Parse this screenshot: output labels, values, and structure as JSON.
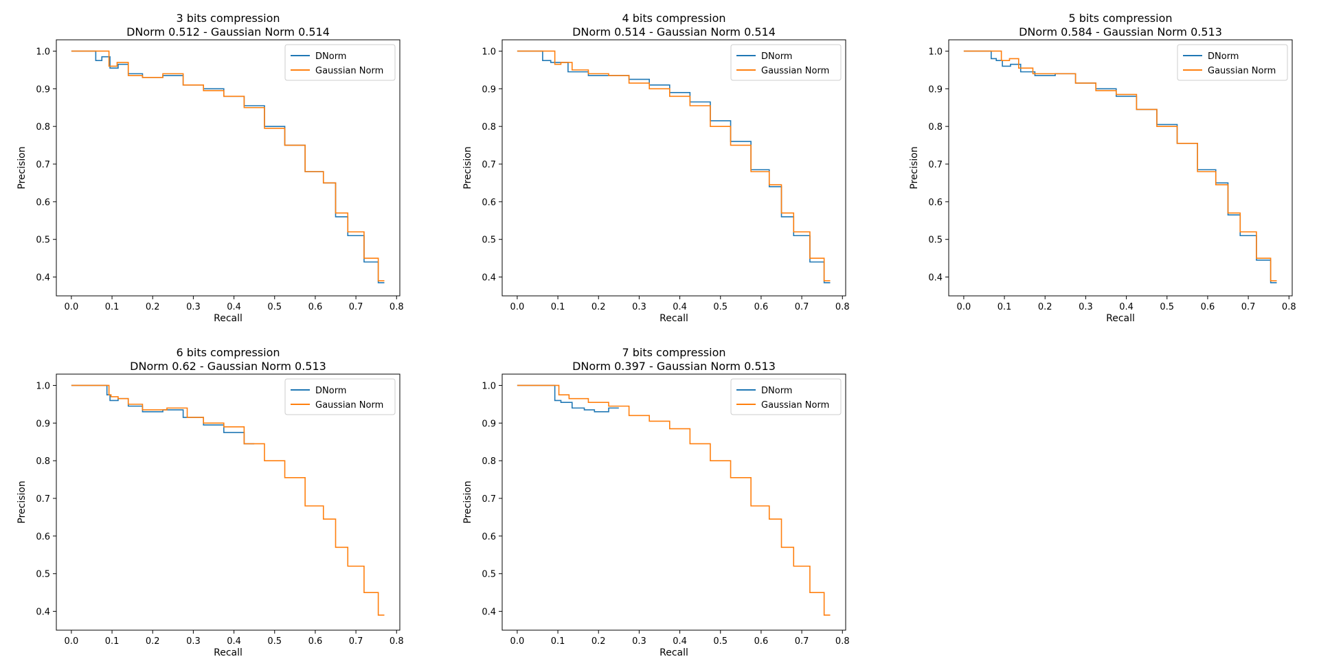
{
  "colors": {
    "dnorm": "#1f77b4",
    "gaussian": "#ff7f0e"
  },
  "chart_data": [
    {
      "type": "line",
      "title": "3 bits compression",
      "subtitle": "DNorm 0.512 - Gaussian Norm 0.514",
      "xlabel": "Recall",
      "ylabel": "Precision",
      "xlim": [
        -0.037,
        0.808
      ],
      "ylim": [
        0.35,
        1.03
      ],
      "xticks": [
        "0.0",
        "0.1",
        "0.2",
        "0.3",
        "0.4",
        "0.5",
        "0.6",
        "0.7",
        "0.8"
      ],
      "yticks": [
        "0.4",
        "0.5",
        "0.6",
        "0.7",
        "0.8",
        "0.9",
        "1.0"
      ],
      "legend": "top-right",
      "series": [
        {
          "name": "DNorm",
          "color": "#1f77b4",
          "points": [
            [
              0,
              1.0
            ],
            [
              0.06,
              1.0
            ],
            [
              0.06,
              0.975
            ],
            [
              0.09,
              0.985
            ],
            [
              0.1,
              0.955
            ],
            [
              0.13,
              0.965
            ],
            [
              0.15,
              0.94
            ],
            [
              0.2,
              0.93
            ],
            [
              0.25,
              0.935
            ],
            [
              0.3,
              0.91
            ],
            [
              0.35,
              0.9
            ],
            [
              0.4,
              0.88
            ],
            [
              0.45,
              0.855
            ],
            [
              0.5,
              0.8
            ],
            [
              0.55,
              0.75
            ],
            [
              0.6,
              0.68
            ],
            [
              0.64,
              0.65
            ],
            [
              0.66,
              0.56
            ],
            [
              0.7,
              0.51
            ],
            [
              0.74,
              0.44
            ],
            [
              0.77,
              0.385
            ]
          ]
        },
        {
          "name": "Gaussian Norm",
          "color": "#ff7f0e",
          "points": [
            [
              0,
              1.0
            ],
            [
              0.09,
              1.0
            ],
            [
              0.095,
              0.96
            ],
            [
              0.13,
              0.97
            ],
            [
              0.15,
              0.935
            ],
            [
              0.2,
              0.93
            ],
            [
              0.25,
              0.94
            ],
            [
              0.3,
              0.91
            ],
            [
              0.35,
              0.895
            ],
            [
              0.4,
              0.88
            ],
            [
              0.45,
              0.85
            ],
            [
              0.5,
              0.795
            ],
            [
              0.55,
              0.75
            ],
            [
              0.6,
              0.68
            ],
            [
              0.64,
              0.65
            ],
            [
              0.66,
              0.57
            ],
            [
              0.7,
              0.52
            ],
            [
              0.74,
              0.45
            ],
            [
              0.77,
              0.39
            ]
          ]
        }
      ]
    },
    {
      "type": "line",
      "title": "4 bits compression",
      "subtitle": "DNorm 0.514 - Gaussian Norm 0.514",
      "xlabel": "Recall",
      "ylabel": "Precision",
      "xlim": [
        -0.037,
        0.808
      ],
      "ylim": [
        0.35,
        1.03
      ],
      "xticks": [
        "0.0",
        "0.1",
        "0.2",
        "0.3",
        "0.4",
        "0.5",
        "0.6",
        "0.7",
        "0.8"
      ],
      "yticks": [
        "0.4",
        "0.5",
        "0.6",
        "0.7",
        "0.8",
        "0.9",
        "1.0"
      ],
      "legend": "top-right",
      "series": [
        {
          "name": "DNorm",
          "color": "#1f77b4",
          "points": [
            [
              0,
              1.0
            ],
            [
              0.06,
              1.0
            ],
            [
              0.065,
              0.975
            ],
            [
              0.1,
              0.97
            ],
            [
              0.15,
              0.945
            ],
            [
              0.2,
              0.935
            ],
            [
              0.25,
              0.935
            ],
            [
              0.3,
              0.925
            ],
            [
              0.35,
              0.91
            ],
            [
              0.4,
              0.89
            ],
            [
              0.45,
              0.865
            ],
            [
              0.5,
              0.815
            ],
            [
              0.55,
              0.76
            ],
            [
              0.6,
              0.685
            ],
            [
              0.64,
              0.64
            ],
            [
              0.66,
              0.56
            ],
            [
              0.7,
              0.51
            ],
            [
              0.74,
              0.44
            ],
            [
              0.77,
              0.385
            ]
          ]
        },
        {
          "name": "Gaussian Norm",
          "color": "#ff7f0e",
          "points": [
            [
              0,
              1.0
            ],
            [
              0.09,
              1.0
            ],
            [
              0.095,
              0.965
            ],
            [
              0.12,
              0.97
            ],
            [
              0.15,
              0.95
            ],
            [
              0.2,
              0.94
            ],
            [
              0.25,
              0.935
            ],
            [
              0.3,
              0.915
            ],
            [
              0.35,
              0.9
            ],
            [
              0.4,
              0.88
            ],
            [
              0.45,
              0.855
            ],
            [
              0.5,
              0.8
            ],
            [
              0.55,
              0.75
            ],
            [
              0.6,
              0.68
            ],
            [
              0.64,
              0.645
            ],
            [
              0.66,
              0.57
            ],
            [
              0.7,
              0.52
            ],
            [
              0.74,
              0.45
            ],
            [
              0.77,
              0.39
            ]
          ]
        }
      ]
    },
    {
      "type": "line",
      "title": "5 bits compression",
      "subtitle": "DNorm 0.584 - Gaussian Norm 0.513",
      "xlabel": "Recall",
      "ylabel": "Precision",
      "xlim": [
        -0.037,
        0.808
      ],
      "ylim": [
        0.35,
        1.03
      ],
      "xticks": [
        "0.0",
        "0.1",
        "0.2",
        "0.3",
        "0.4",
        "0.5",
        "0.6",
        "0.7",
        "0.8"
      ],
      "yticks": [
        "0.4",
        "0.5",
        "0.6",
        "0.7",
        "0.8",
        "0.9",
        "1.0"
      ],
      "legend": "top-right",
      "series": [
        {
          "name": "DNorm",
          "color": "#1f77b4",
          "points": [
            [
              0,
              1.0
            ],
            [
              0.065,
              1.0
            ],
            [
              0.07,
              0.98
            ],
            [
              0.09,
              0.975
            ],
            [
              0.1,
              0.96
            ],
            [
              0.13,
              0.965
            ],
            [
              0.15,
              0.945
            ],
            [
              0.2,
              0.935
            ],
            [
              0.25,
              0.94
            ],
            [
              0.3,
              0.915
            ],
            [
              0.35,
              0.9
            ],
            [
              0.4,
              0.88
            ],
            [
              0.45,
              0.845
            ],
            [
              0.5,
              0.805
            ],
            [
              0.55,
              0.755
            ],
            [
              0.6,
              0.685
            ],
            [
              0.64,
              0.65
            ],
            [
              0.66,
              0.565
            ],
            [
              0.7,
              0.51
            ],
            [
              0.74,
              0.445
            ],
            [
              0.77,
              0.385
            ]
          ]
        },
        {
          "name": "Gaussian Norm",
          "color": "#ff7f0e",
          "points": [
            [
              0,
              1.0
            ],
            [
              0.09,
              1.0
            ],
            [
              0.095,
              0.975
            ],
            [
              0.13,
              0.98
            ],
            [
              0.14,
              0.955
            ],
            [
              0.2,
              0.94
            ],
            [
              0.25,
              0.94
            ],
            [
              0.3,
              0.915
            ],
            [
              0.35,
              0.895
            ],
            [
              0.4,
              0.885
            ],
            [
              0.45,
              0.845
            ],
            [
              0.5,
              0.8
            ],
            [
              0.55,
              0.755
            ],
            [
              0.6,
              0.68
            ],
            [
              0.64,
              0.645
            ],
            [
              0.66,
              0.57
            ],
            [
              0.7,
              0.52
            ],
            [
              0.74,
              0.45
            ],
            [
              0.77,
              0.39
            ]
          ]
        }
      ]
    },
    {
      "type": "line",
      "title": "6 bits compression",
      "subtitle": "DNorm 0.62 - Gaussian Norm 0.513",
      "xlabel": "Recall",
      "ylabel": "Precision",
      "xlim": [
        -0.037,
        0.808
      ],
      "ylim": [
        0.35,
        1.03
      ],
      "xticks": [
        "0.0",
        "0.1",
        "0.2",
        "0.3",
        "0.4",
        "0.5",
        "0.6",
        "0.7",
        "0.8"
      ],
      "yticks": [
        "0.4",
        "0.5",
        "0.6",
        "0.7",
        "0.8",
        "0.9",
        "1.0"
      ],
      "legend": "top-right",
      "series": [
        {
          "name": "DNorm",
          "color": "#1f77b4",
          "points": [
            [
              0,
              1.0
            ],
            [
              0.085,
              1.0
            ],
            [
              0.09,
              0.975
            ],
            [
              0.1,
              0.96
            ],
            [
              0.13,
              0.965
            ],
            [
              0.15,
              0.945
            ],
            [
              0.2,
              0.93
            ],
            [
              0.25,
              0.935
            ],
            [
              0.3,
              0.915
            ],
            [
              0.35,
              0.895
            ],
            [
              0.4,
              0.875
            ],
            [
              0.45,
              0.845
            ]
          ]
        },
        {
          "name": "Gaussian Norm",
          "color": "#ff7f0e",
          "points": [
            [
              0,
              1.0
            ],
            [
              0.09,
              1.0
            ],
            [
              0.095,
              0.975
            ],
            [
              0.1,
              0.97
            ],
            [
              0.13,
              0.965
            ],
            [
              0.15,
              0.95
            ],
            [
              0.2,
              0.935
            ],
            [
              0.27,
              0.94
            ],
            [
              0.3,
              0.915
            ],
            [
              0.35,
              0.9
            ],
            [
              0.4,
              0.89
            ],
            [
              0.45,
              0.845
            ],
            [
              0.5,
              0.8
            ],
            [
              0.55,
              0.755
            ],
            [
              0.6,
              0.68
            ],
            [
              0.64,
              0.645
            ],
            [
              0.66,
              0.57
            ],
            [
              0.7,
              0.52
            ],
            [
              0.74,
              0.45
            ],
            [
              0.77,
              0.39
            ]
          ]
        }
      ]
    },
    {
      "type": "line",
      "title": "7 bits compression",
      "subtitle": "DNorm 0.397 - Gaussian Norm 0.513",
      "xlabel": "Recall",
      "ylabel": "Precision",
      "xlim": [
        -0.037,
        0.808
      ],
      "ylim": [
        0.35,
        1.03
      ],
      "xticks": [
        "0.0",
        "0.1",
        "0.2",
        "0.3",
        "0.4",
        "0.5",
        "0.6",
        "0.7",
        "0.8"
      ],
      "yticks": [
        "0.4",
        "0.5",
        "0.6",
        "0.7",
        "0.8",
        "0.9",
        "1.0"
      ],
      "legend": "top-right",
      "series": [
        {
          "name": "DNorm",
          "color": "#1f77b4",
          "points": [
            [
              0,
              1.0
            ],
            [
              0.09,
              1.0
            ],
            [
              0.095,
              0.96
            ],
            [
              0.12,
              0.955
            ],
            [
              0.15,
              0.94
            ],
            [
              0.18,
              0.935
            ],
            [
              0.2,
              0.93
            ],
            [
              0.25,
              0.94
            ]
          ]
        },
        {
          "name": "Gaussian Norm",
          "color": "#ff7f0e",
          "points": [
            [
              0,
              1.0
            ],
            [
              0.1,
              1.0
            ],
            [
              0.105,
              0.975
            ],
            [
              0.15,
              0.965
            ],
            [
              0.2,
              0.955
            ],
            [
              0.25,
              0.945
            ],
            [
              0.3,
              0.92
            ],
            [
              0.35,
              0.905
            ],
            [
              0.4,
              0.885
            ],
            [
              0.45,
              0.845
            ],
            [
              0.5,
              0.8
            ],
            [
              0.55,
              0.755
            ],
            [
              0.6,
              0.68
            ],
            [
              0.64,
              0.645
            ],
            [
              0.66,
              0.57
            ],
            [
              0.7,
              0.52
            ],
            [
              0.74,
              0.45
            ],
            [
              0.77,
              0.39
            ]
          ]
        }
      ]
    }
  ]
}
